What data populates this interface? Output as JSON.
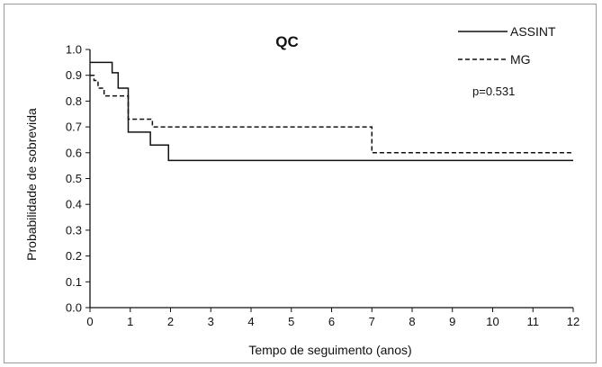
{
  "chart_data": {
    "type": "line",
    "title": "QC",
    "xlabel": "Tempo de seguimento (anos)",
    "ylabel": "Probabilidade de sobrevida",
    "xlim": [
      0,
      12
    ],
    "ylim": [
      0,
      1.0
    ],
    "x_ticks": [
      "0",
      "1",
      "2",
      "3",
      "4",
      "5",
      "6",
      "7",
      "8",
      "9",
      "10",
      "11",
      "12"
    ],
    "y_ticks": [
      "0.0",
      "0.1",
      "0.2",
      "0.3",
      "0.4",
      "0.5",
      "0.6",
      "0.7",
      "0.8",
      "0.9",
      "1.0"
    ],
    "grid": false,
    "legend_position": "top-right",
    "annotation": "p=0.531",
    "step": true,
    "series": [
      {
        "name": "ASSINT",
        "line_style": "solid",
        "color": "#111111",
        "x": [
          0,
          0.55,
          0.7,
          0.95,
          1.5,
          1.95,
          12
        ],
        "y": [
          0.95,
          0.91,
          0.85,
          0.68,
          0.63,
          0.57,
          0.57
        ]
      },
      {
        "name": "MG",
        "line_style": "dashed",
        "color": "#111111",
        "x": [
          0,
          0.1,
          0.2,
          0.35,
          0.95,
          1.55,
          7.0,
          12
        ],
        "y": [
          0.9,
          0.88,
          0.85,
          0.82,
          0.73,
          0.7,
          0.6,
          0.6
        ]
      }
    ]
  }
}
